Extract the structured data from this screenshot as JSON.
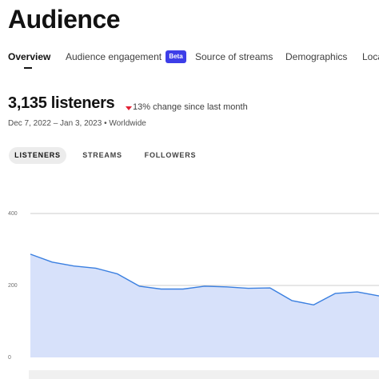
{
  "header": {
    "title": "Audience"
  },
  "tabs": [
    "Overview",
    "Audience engagement",
    "Source of streams",
    "Demographics",
    "Loca"
  ],
  "beta_badge": "Beta",
  "summary": {
    "headline": "3,135 listeners",
    "change": "13% change since last month",
    "range": "Dec 7, 2022 – Jan 3, 2023 • Worldwide"
  },
  "metric_buttons": [
    "LISTENERS",
    "STREAMS",
    "FOLLOWERS"
  ],
  "chart_data": {
    "type": "area",
    "color": "#3a7fe0",
    "fill": "#d7e1fa",
    "values": [
      287,
      265,
      254,
      248,
      232,
      198,
      190,
      190,
      198,
      196,
      192,
      193,
      158,
      146,
      178,
      182,
      171
    ],
    "ylim": [
      0,
      400
    ],
    "yticks": [
      0,
      200,
      400
    ],
    "grid": true
  }
}
